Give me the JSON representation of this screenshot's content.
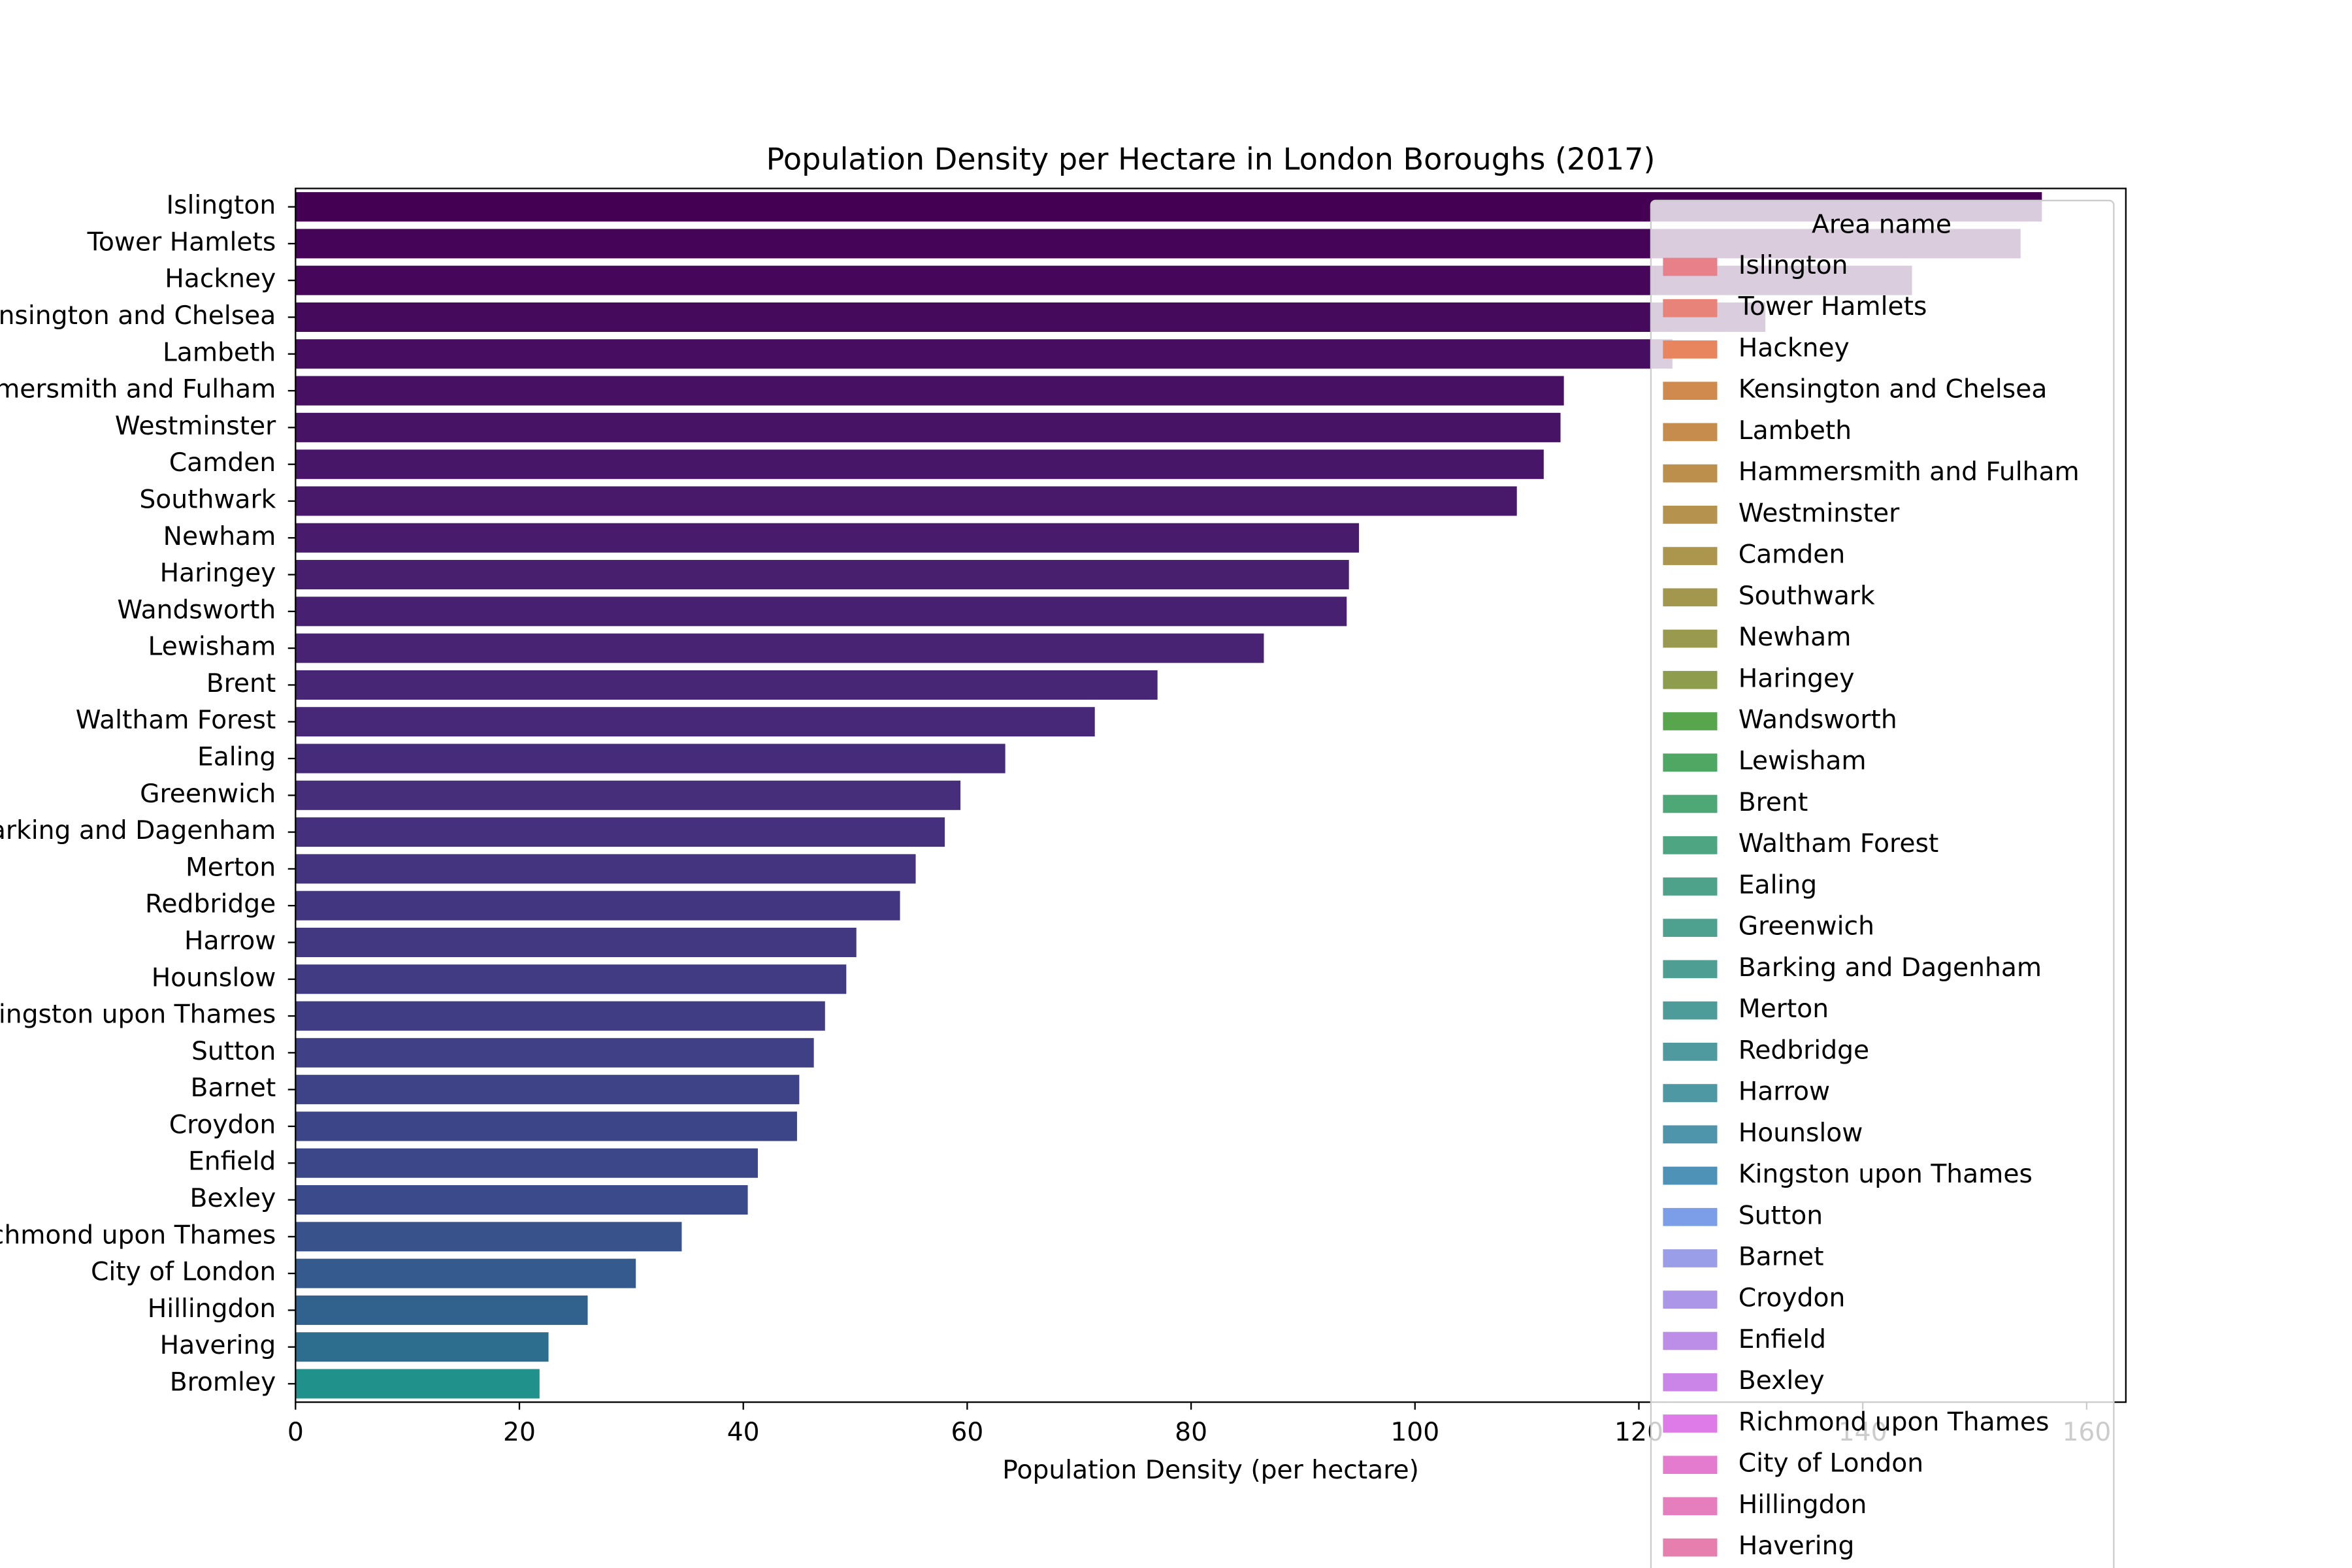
{
  "chart_data": {
    "type": "barh",
    "title": "Population Density per Hectare in London Boroughs (2017)",
    "x_label": "Population Density (per hectare)",
    "categories": [
      "Islington",
      "Tower Hamlets",
      "Hackney",
      "Kensington and Chelsea",
      "Lambeth",
      "Hammersmith and Fulham",
      "Westminster",
      "Camden",
      "Southwark",
      "Newham",
      "Haringey",
      "Wandsworth",
      "Lewisham",
      "Brent",
      "Waltham Forest",
      "Ealing",
      "Greenwich",
      "Barking and Dagenham",
      "Merton",
      "Redbridge",
      "Harrow",
      "Hounslow",
      "Kingston upon Thames",
      "Sutton",
      "Barnet",
      "Croydon",
      "Enfield",
      "Bexley",
      "Richmond upon Thames",
      "City of London",
      "Hillingdon",
      "Havering",
      "Bromley"
    ],
    "values": [
      156.0,
      154.1,
      144.4,
      131.3,
      123.0,
      113.3,
      113.0,
      111.5,
      109.1,
      95.0,
      94.1,
      93.9,
      86.5,
      77.0,
      71.4,
      63.4,
      59.4,
      58.0,
      55.4,
      54.0,
      50.1,
      49.2,
      47.3,
      46.3,
      45.0,
      44.8,
      41.3,
      40.4,
      34.5,
      30.4,
      26.1,
      22.6,
      21.8
    ],
    "colors": [
      "#440154",
      "#450457",
      "#46075a",
      "#460a5d",
      "#470d60",
      "#471063",
      "#471365",
      "#481668",
      "#48186a",
      "#481b6d",
      "#481e6f",
      "#482071",
      "#482374",
      "#472676",
      "#472878",
      "#462b7a",
      "#462e7b",
      "#45307d",
      "#44337f",
      "#433680",
      "#423882",
      "#413b83",
      "#403d84",
      "#3f4086",
      "#3e4287",
      "#3c4588",
      "#3b4789",
      "#3a4a8a",
      "#38528c",
      "#355a8d",
      "#31628e",
      "#2d6e8e",
      "#21918c"
    ],
    "xlim": [
      0,
      163.5
    ],
    "xticks": [
      0,
      20,
      40,
      60,
      80,
      100,
      120,
      140,
      160
    ],
    "legend": {
      "title": "Area name",
      "position": "upper right",
      "colors": [
        "#e8808a",
        "#e8837a",
        "#e8855f",
        "#d08a4d",
        "#c68c4d",
        "#bd8f4d",
        "#b5924d",
        "#ac954d",
        "#a3974d",
        "#999a4d",
        "#8e9d4d",
        "#57a64d",
        "#4ea763",
        "#4ea776",
        "#4ea582",
        "#4ea28a",
        "#4ea08f",
        "#4e9e94",
        "#4e9c99",
        "#4e9a9e",
        "#4e98a4",
        "#4e95ab",
        "#4f92b7",
        "#7c9ee8",
        "#9a9ee8",
        "#ac96e8",
        "#bc8ee8",
        "#cb85e8",
        "#de7be8",
        "#e47bcf",
        "#e67dbd",
        "#e77fae",
        "#e880a0"
      ]
    }
  }
}
